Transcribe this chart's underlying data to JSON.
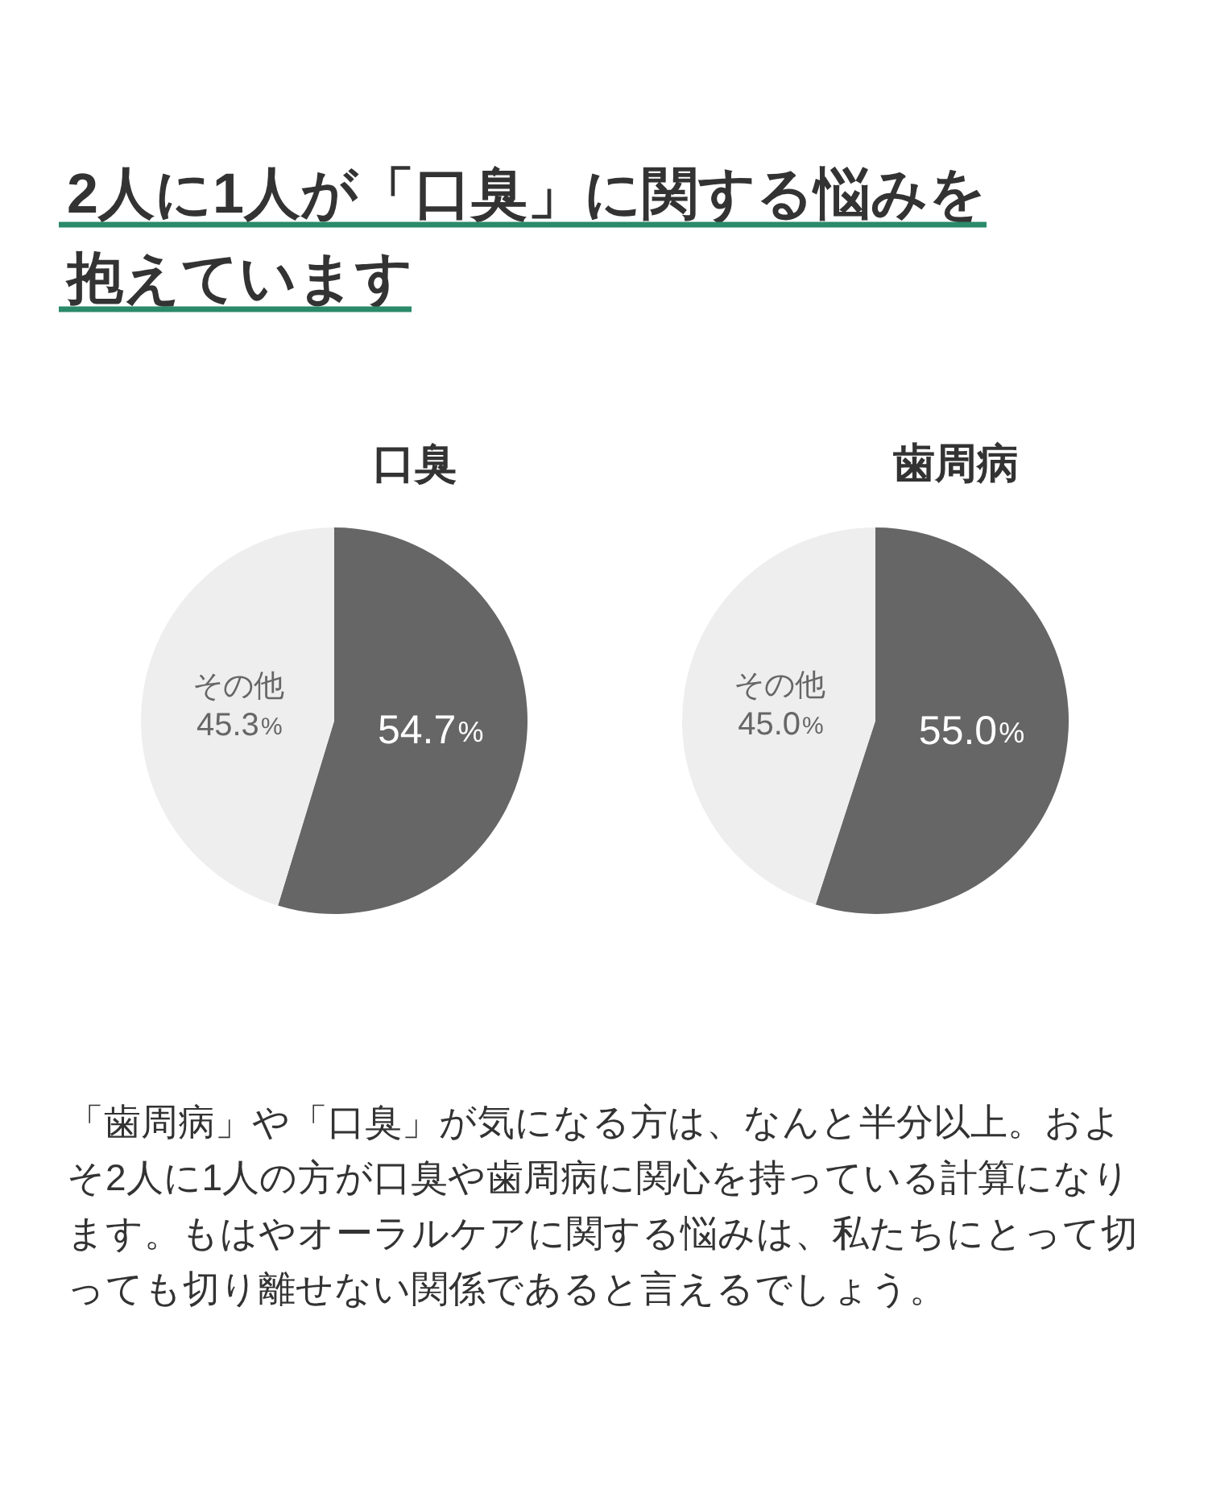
{
  "chart_data": [
    {
      "type": "other",
      "title": "2人に1人が「口臭」に関する悩みを抱えています"
    },
    {
      "type": "pie",
      "title": "口臭",
      "categories": [
        null,
        "その他"
      ],
      "values": [
        54.7,
        45.3
      ],
      "colors": [
        "#666666",
        "#eeeeee"
      ],
      "value_labels": [
        "54.7%",
        "45.3%"
      ]
    },
    {
      "type": "pie",
      "title": "歯周病",
      "categories": [
        null,
        "その他"
      ],
      "values": [
        55.0,
        45.0
      ],
      "colors": [
        "#666666",
        "#eeeeee"
      ],
      "value_labels": [
        "55.0%",
        "45.0%"
      ]
    },
    {
      "type": "other",
      "annotations": [
        "「歯周病」や「口臭」が気になる方は、なんと半分以上。およそ2人に1人の方が口臭や歯周病に関心を持っている計算になります。もはやオーラルケアに関する悩みは、私たちにとって切っても切り離せない関係であると言えるでしょう。"
      ]
    }
  ]
}
